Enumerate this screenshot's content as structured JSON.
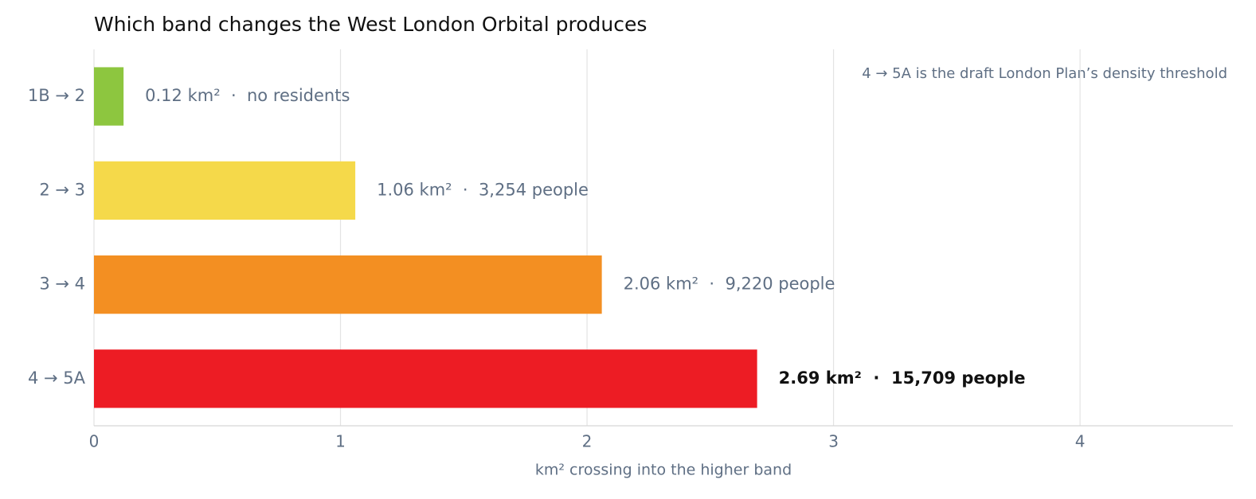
{
  "chart_data": {
    "type": "hbar",
    "title": "Which band changes the West London Orbital produces",
    "annotation": "4 → 5A is the draft London Plan’s density threshold",
    "x_label": "km² crossing into the higher band",
    "categories": [
      "1B → 2",
      "2 → 3",
      "3 → 4",
      "4 → 5A"
    ],
    "values": [
      0.12,
      1.06,
      2.06,
      2.69
    ],
    "value_labels": [
      "0.12 km²  ·  no residents",
      "1.06 km²  ·  3,254 people",
      "2.06 km²  ·  9,220 people",
      "2.69 km²  ·  15,709 people"
    ],
    "colors": [
      "#8dc63f",
      "#f5d94a",
      "#f38f22",
      "#ed1c24"
    ],
    "xlim": [
      0,
      4.62
    ],
    "xticks": [
      0,
      1,
      2,
      3,
      4
    ],
    "grid": true
  }
}
